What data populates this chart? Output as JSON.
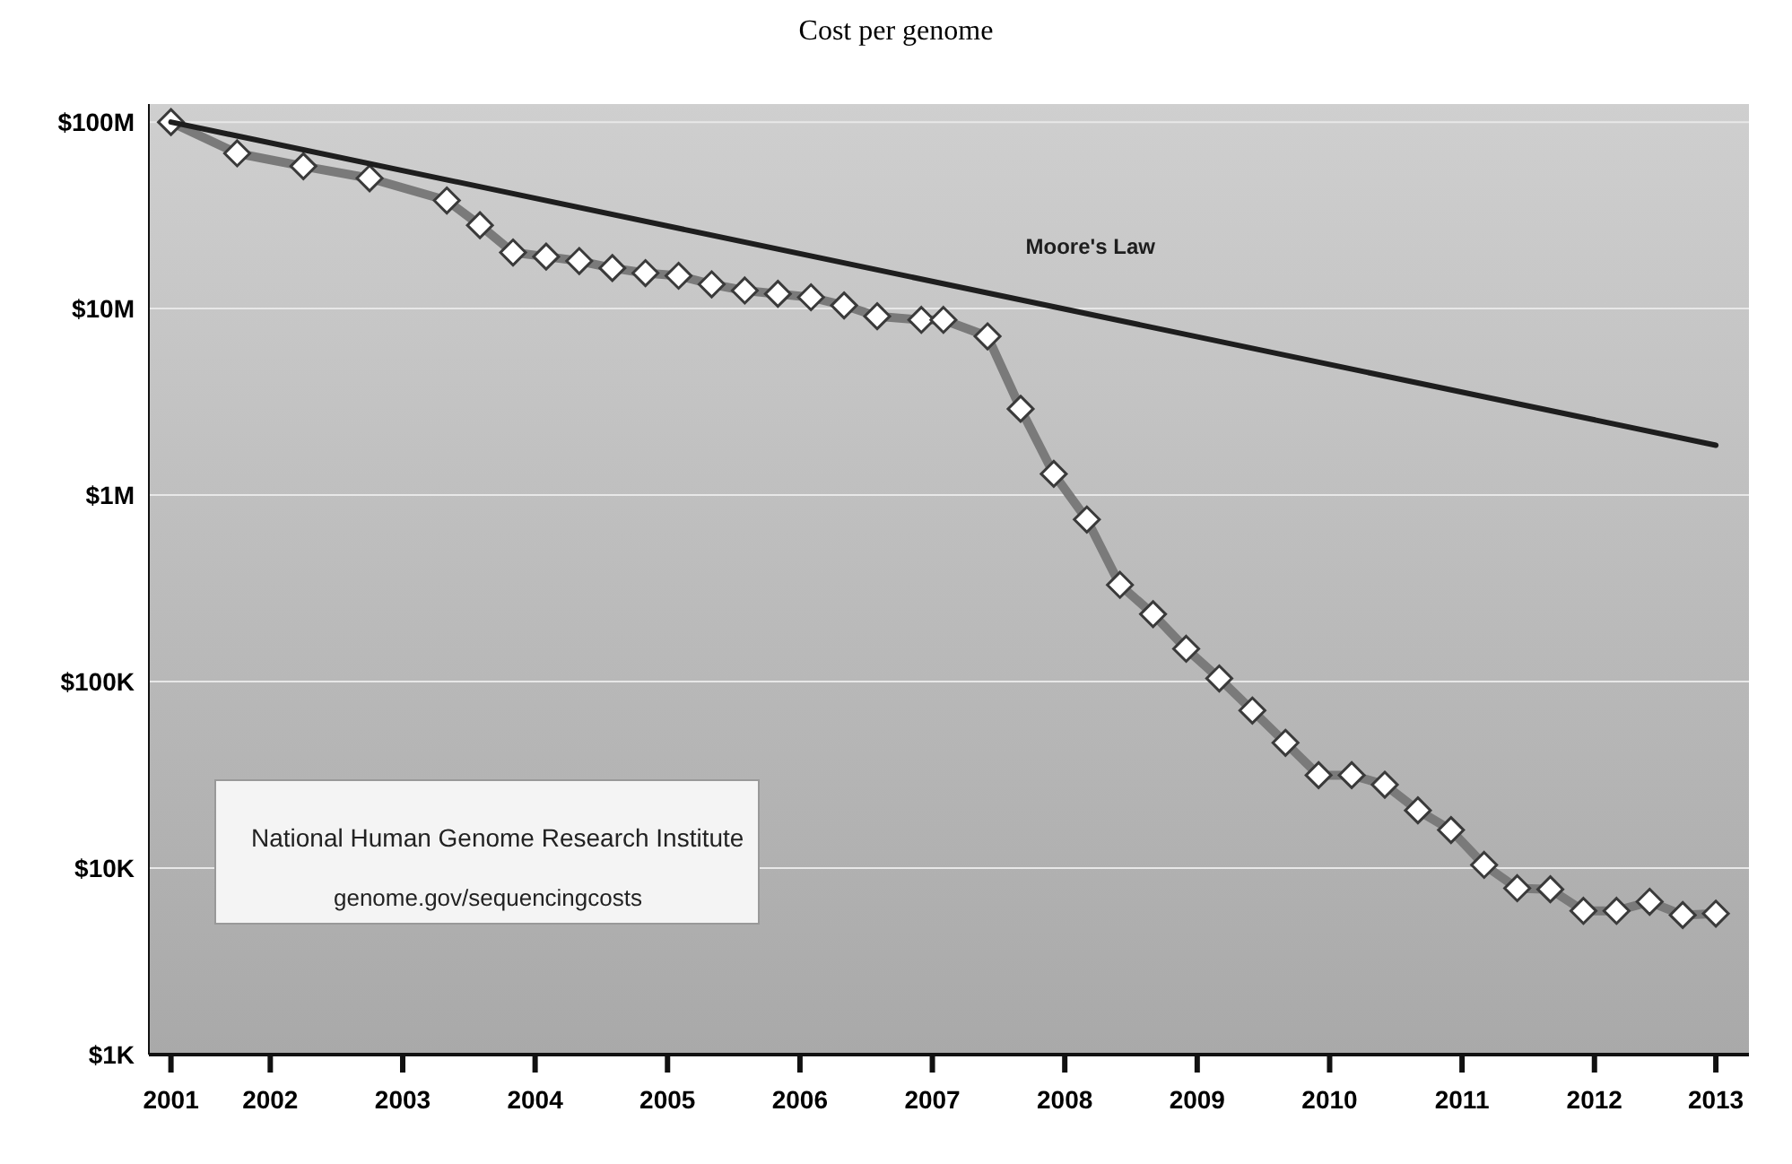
{
  "chart_data": {
    "type": "line",
    "title": "Cost per genome",
    "log": "y",
    "grid": "y",
    "marker": "diamond",
    "legend": false,
    "xlim": [
      "2001-08",
      "2013-09"
    ],
    "xticks": [
      {
        "value": "2001-10",
        "label": "2001"
      },
      {
        "value": "2002-07",
        "label": "2002"
      },
      {
        "value": "2003-07",
        "label": "2003"
      },
      {
        "value": "2004-07",
        "label": "2004"
      },
      {
        "value": "2005-07",
        "label": "2005"
      },
      {
        "value": "2006-07",
        "label": "2006"
      },
      {
        "value": "2007-07",
        "label": "2007"
      },
      {
        "value": "2008-07",
        "label": "2008"
      },
      {
        "value": "2009-07",
        "label": "2009"
      },
      {
        "value": "2010-07",
        "label": "2010"
      },
      {
        "value": "2011-07",
        "label": "2011"
      },
      {
        "value": "2012-07",
        "label": "2012"
      },
      {
        "value": "2013-06",
        "label": "2013"
      }
    ],
    "ylim": [
      1000,
      125000000
    ],
    "yticks": [
      {
        "value": 1000,
        "label": "$1K"
      },
      {
        "value": 10000,
        "label": "$10K"
      },
      {
        "value": 100000,
        "label": "$100K"
      },
      {
        "value": 1000000,
        "label": "$1M"
      },
      {
        "value": 10000000,
        "label": "$10M"
      },
      {
        "value": 100000000,
        "label": "$100M"
      }
    ],
    "series": [
      {
        "color": "#7a7a7a",
        "x": [
          "2001-10",
          "2002-04",
          "2002-10",
          "2003-04",
          "2003-11",
          "2004-02",
          "2004-05",
          "2004-08",
          "2004-11",
          "2005-02",
          "2005-05",
          "2005-08",
          "2005-11",
          "2006-02",
          "2006-05",
          "2006-08",
          "2006-11",
          "2007-02",
          "2007-06",
          "2007-08",
          "2007-12",
          "2008-03",
          "2008-06",
          "2008-09",
          "2008-12",
          "2009-03",
          "2009-06",
          "2009-09",
          "2009-12",
          "2010-03",
          "2010-06",
          "2010-09",
          "2010-12",
          "2011-03",
          "2011-06",
          "2011-09",
          "2011-12",
          "2012-03",
          "2012-06",
          "2012-09",
          "2012-12",
          "2013-03",
          "2013-06"
        ],
        "values": [
          100000000,
          68000000,
          58000000,
          50000000,
          38000000,
          28000000,
          20000000,
          19000000,
          18000000,
          16500000,
          15500000,
          15000000,
          13500000,
          12500000,
          12000000,
          11500000,
          10400000,
          9100000,
          8700000,
          8700000,
          7100000,
          2900000,
          1300000,
          740000,
          330000,
          230000,
          150000,
          104000,
          70000,
          47000,
          31500,
          31500,
          28000,
          20400,
          16000,
          10400,
          7800,
          7700,
          5900,
          5900,
          6600,
          5600,
          5700
        ]
      },
      {
        "name": "Moore's Law",
        "color": "#1e1e1e",
        "marker": "none",
        "x": [
          "2001-10",
          "2013-06"
        ],
        "values": [
          100000000,
          1850000
        ]
      }
    ],
    "annotations": [
      "National Human Genome Research Institute",
      "genome.gov/sequencingcosts"
    ]
  }
}
